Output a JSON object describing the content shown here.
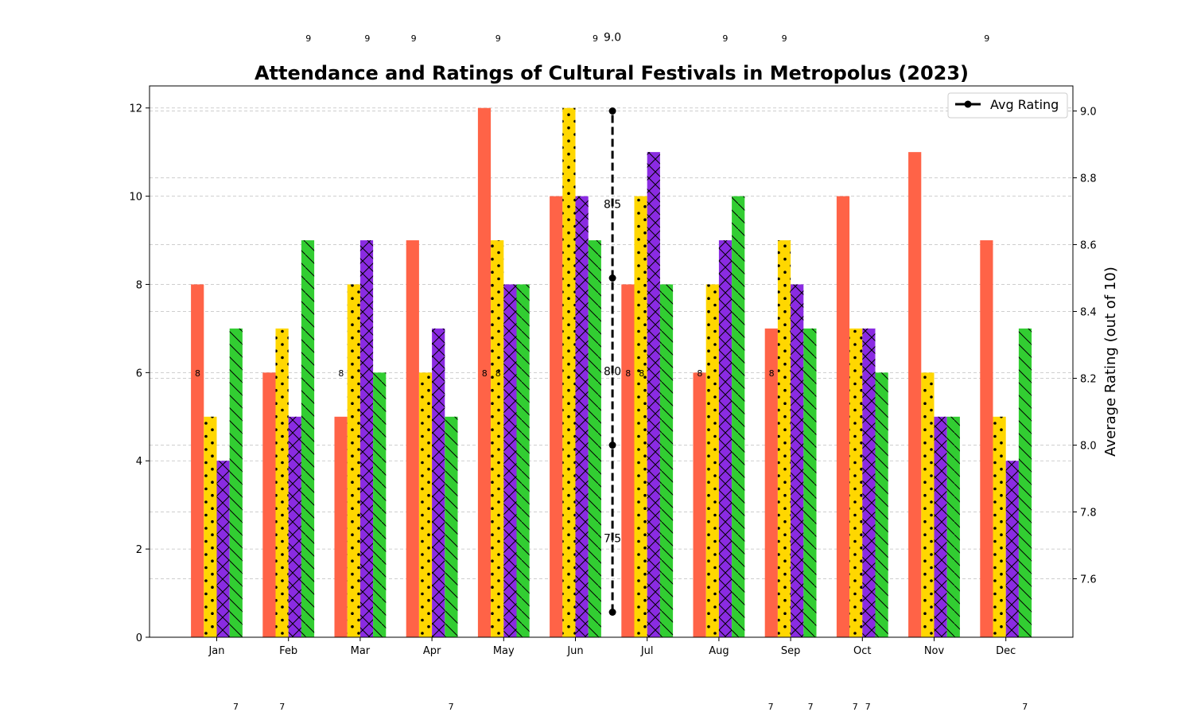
{
  "chart_data": {
    "type": "bar",
    "title": "Attendance and Ratings of Cultural Festivals in Metropolus (2023)",
    "xlabel": "",
    "ylabel": "",
    "y2label": "Average Rating (out of 10)",
    "categories": [
      "Jan",
      "Feb",
      "Mar",
      "Apr",
      "May",
      "Jun",
      "Jul",
      "Aug",
      "Sep",
      "Oct",
      "Nov",
      "Dec"
    ],
    "ylim": [
      0,
      12.5
    ],
    "y2lim": [
      7.425,
      9.075
    ],
    "yticks": [
      0,
      2,
      4,
      6,
      8,
      10,
      12
    ],
    "y2ticks": [
      "7.6",
      "7.8",
      "8.0",
      "8.2",
      "8.4",
      "8.6",
      "8.8",
      "9.0"
    ],
    "grid": true,
    "series": [
      {
        "color": "#FF6347",
        "hatch": "none",
        "values": [
          8,
          6,
          5,
          9,
          12,
          10,
          8,
          6,
          7,
          10,
          11,
          9
        ]
      },
      {
        "color": "#FFD700",
        "hatch": "dots",
        "values": [
          5,
          7,
          8,
          6,
          9,
          12,
          10,
          8,
          9,
          7,
          6,
          5
        ]
      },
      {
        "color": "#8A2BE2",
        "hatch": "cross",
        "values": [
          4,
          5,
          9,
          7,
          8,
          10,
          11,
          9,
          8,
          7,
          5,
          4
        ]
      },
      {
        "color": "#32CD32",
        "hatch": "backslash",
        "values": [
          7,
          9,
          6,
          5,
          8,
          9,
          8,
          10,
          7,
          6,
          5,
          7
        ]
      }
    ],
    "line": {
      "name": "Avg Rating",
      "color": "#000000",
      "x_position": "between Jun and Jul",
      "values": [
        7.5,
        8.0,
        8.5,
        9.0
      ],
      "labels": [
        "7.5",
        "8.0",
        "8.5",
        "9.0"
      ]
    },
    "legend": {
      "placement": "top-right",
      "entries": [
        "Avg Rating"
      ]
    },
    "stray_labels": {
      "top": [
        {
          "text": "9",
          "category": "Feb"
        },
        {
          "text": "9",
          "category": "Mar"
        },
        {
          "text": "9",
          "category": "Apr"
        },
        {
          "text": "9",
          "category": "May"
        },
        {
          "text": "9",
          "category": "Jun"
        },
        {
          "text": "9",
          "category": "Aug"
        },
        {
          "text": "9",
          "category": "Sep"
        },
        {
          "text": "9",
          "category": "Dec"
        }
      ],
      "middle": [
        {
          "text": "8",
          "category": "Jan"
        },
        {
          "text": "8",
          "category": "Mar"
        },
        {
          "text": "8",
          "category": "May"
        },
        {
          "text": "8",
          "category": "May"
        },
        {
          "text": "8",
          "category": "Jul"
        },
        {
          "text": "8",
          "category": "Jul"
        },
        {
          "text": "8",
          "category": "Aug"
        },
        {
          "text": "8",
          "category": "Sep"
        }
      ],
      "bottom": [
        {
          "text": "7",
          "category": "Jan"
        },
        {
          "text": "7",
          "category": "Feb"
        },
        {
          "text": "7",
          "category": "Apr"
        },
        {
          "text": "7",
          "category": "Sep"
        },
        {
          "text": "7",
          "category": "Sep"
        },
        {
          "text": "7",
          "category": "Oct"
        },
        {
          "text": "7",
          "category": "Oct"
        },
        {
          "text": "7",
          "category": "Dec"
        }
      ]
    }
  }
}
